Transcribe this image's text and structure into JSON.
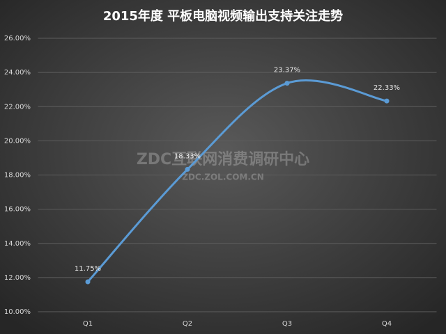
{
  "chart_data": {
    "type": "line",
    "title": "2015年度 平板电脑视频输出支持关注走势",
    "categories": [
      "Q1",
      "Q2",
      "Q3",
      "Q4"
    ],
    "values": [
      11.75,
      18.33,
      23.37,
      22.33
    ],
    "value_labels": [
      "11.75%",
      "18.33%",
      "23.37%",
      "22.33%"
    ],
    "color": "#5b9bd5",
    "smooth": true,
    "grid": true,
    "ylim": [
      10,
      26
    ],
    "yticks": [
      {
        "value": 10,
        "label": "10.00%"
      },
      {
        "value": 12,
        "label": "12.00%"
      },
      {
        "value": 14,
        "label": "14.00%"
      },
      {
        "value": 16,
        "label": "16.00%"
      },
      {
        "value": 18,
        "label": "18.00%"
      },
      {
        "value": 20,
        "label": "20.00%"
      },
      {
        "value": 22,
        "label": "22.00%"
      },
      {
        "value": 24,
        "label": "24.00%"
      },
      {
        "value": 26,
        "label": "26.00%"
      }
    ],
    "watermark": [
      "ZDC互联网消费调研中心",
      "ZDC.ZOL.COM.CN"
    ]
  }
}
